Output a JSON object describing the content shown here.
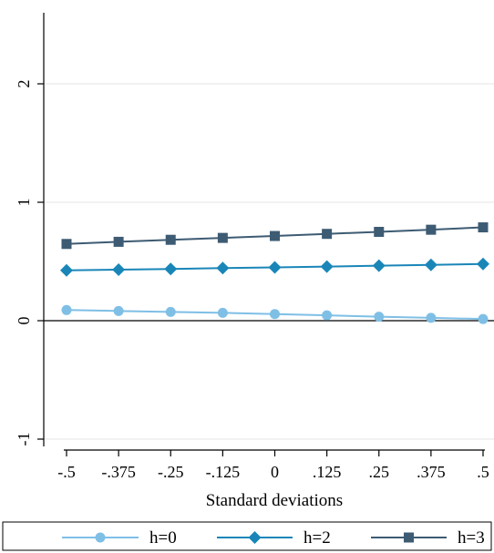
{
  "chart_data": {
    "type": "line",
    "xlabel": "Standard deviations",
    "ylabel": "",
    "x": [
      -0.5,
      -0.375,
      -0.25,
      -0.125,
      0,
      0.125,
      0.25,
      0.375,
      0.5
    ],
    "x_tick_labels": [
      "-.5",
      "-.375",
      "-.25",
      "-.125",
      "0",
      ".125",
      ".25",
      ".375",
      ".5"
    ],
    "y_ticks": [
      -1,
      0,
      1,
      2
    ],
    "y_tick_labels": [
      "-1",
      "0",
      "1",
      "2"
    ],
    "ylim": [
      -1.05,
      2.6
    ],
    "grid": true,
    "reference_line_y": 0,
    "legend_position": "bottom",
    "series": [
      {
        "name": "h=0",
        "color": "#7fbfe6",
        "marker": "circle",
        "values": [
          0.09,
          0.082,
          0.074,
          0.066,
          0.056,
          0.045,
          0.034,
          0.024,
          0.014
        ]
      },
      {
        "name": "h=2",
        "color": "#1a86b8",
        "marker": "diamond",
        "values": [
          0.425,
          0.431,
          0.437,
          0.444,
          0.45,
          0.457,
          0.464,
          0.471,
          0.479
        ]
      },
      {
        "name": "h=3",
        "color": "#3d5b73",
        "marker": "square",
        "values": [
          0.648,
          0.666,
          0.683,
          0.699,
          0.715,
          0.733,
          0.75,
          0.768,
          0.788
        ]
      }
    ]
  }
}
